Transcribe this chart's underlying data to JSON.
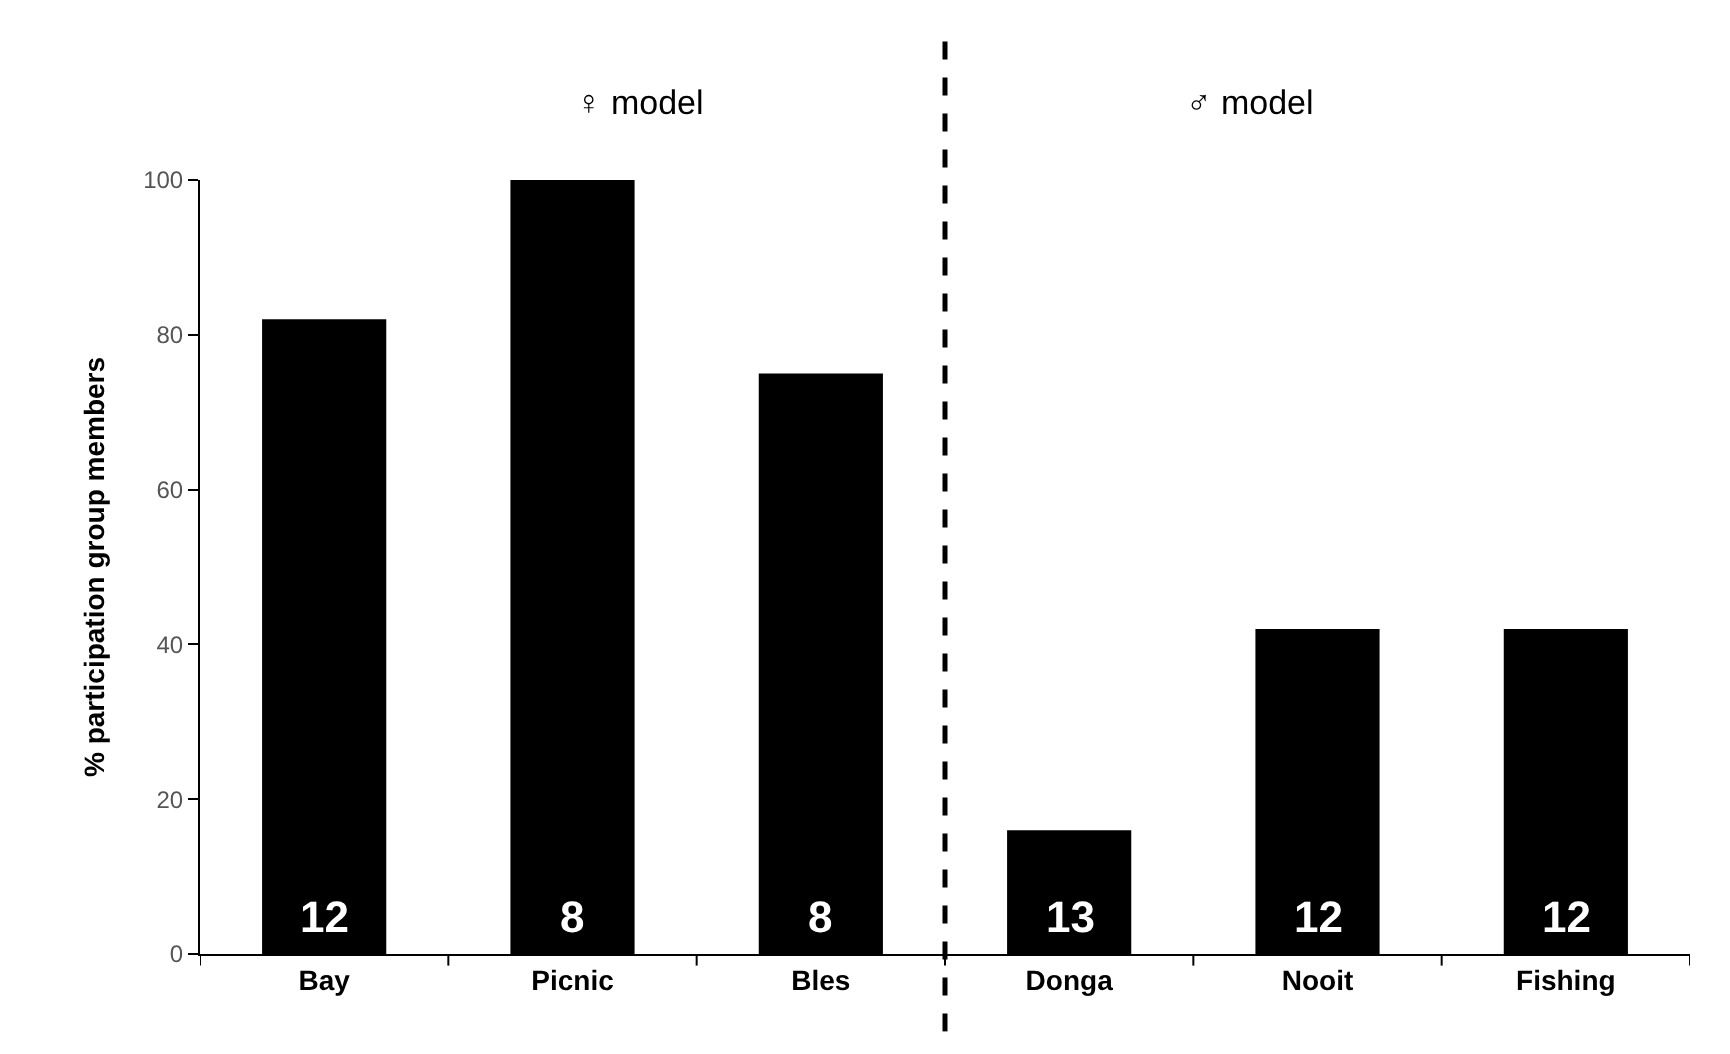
{
  "chart_data": {
    "type": "bar",
    "ylabel": "% participation group members",
    "categories": [
      "Bay",
      "Picnic",
      "Bles",
      "Donga",
      "Nooit",
      "Fishing"
    ],
    "values": [
      82,
      100,
      75,
      16,
      42,
      42
    ],
    "color": "#000000",
    "ylim": [
      0,
      100
    ],
    "yticks": [
      0,
      20,
      40,
      60,
      80,
      100
    ],
    "annotations": [
      "♀ model",
      "♂ model",
      "12",
      "8",
      "8",
      "13",
      "12",
      "12"
    ]
  }
}
